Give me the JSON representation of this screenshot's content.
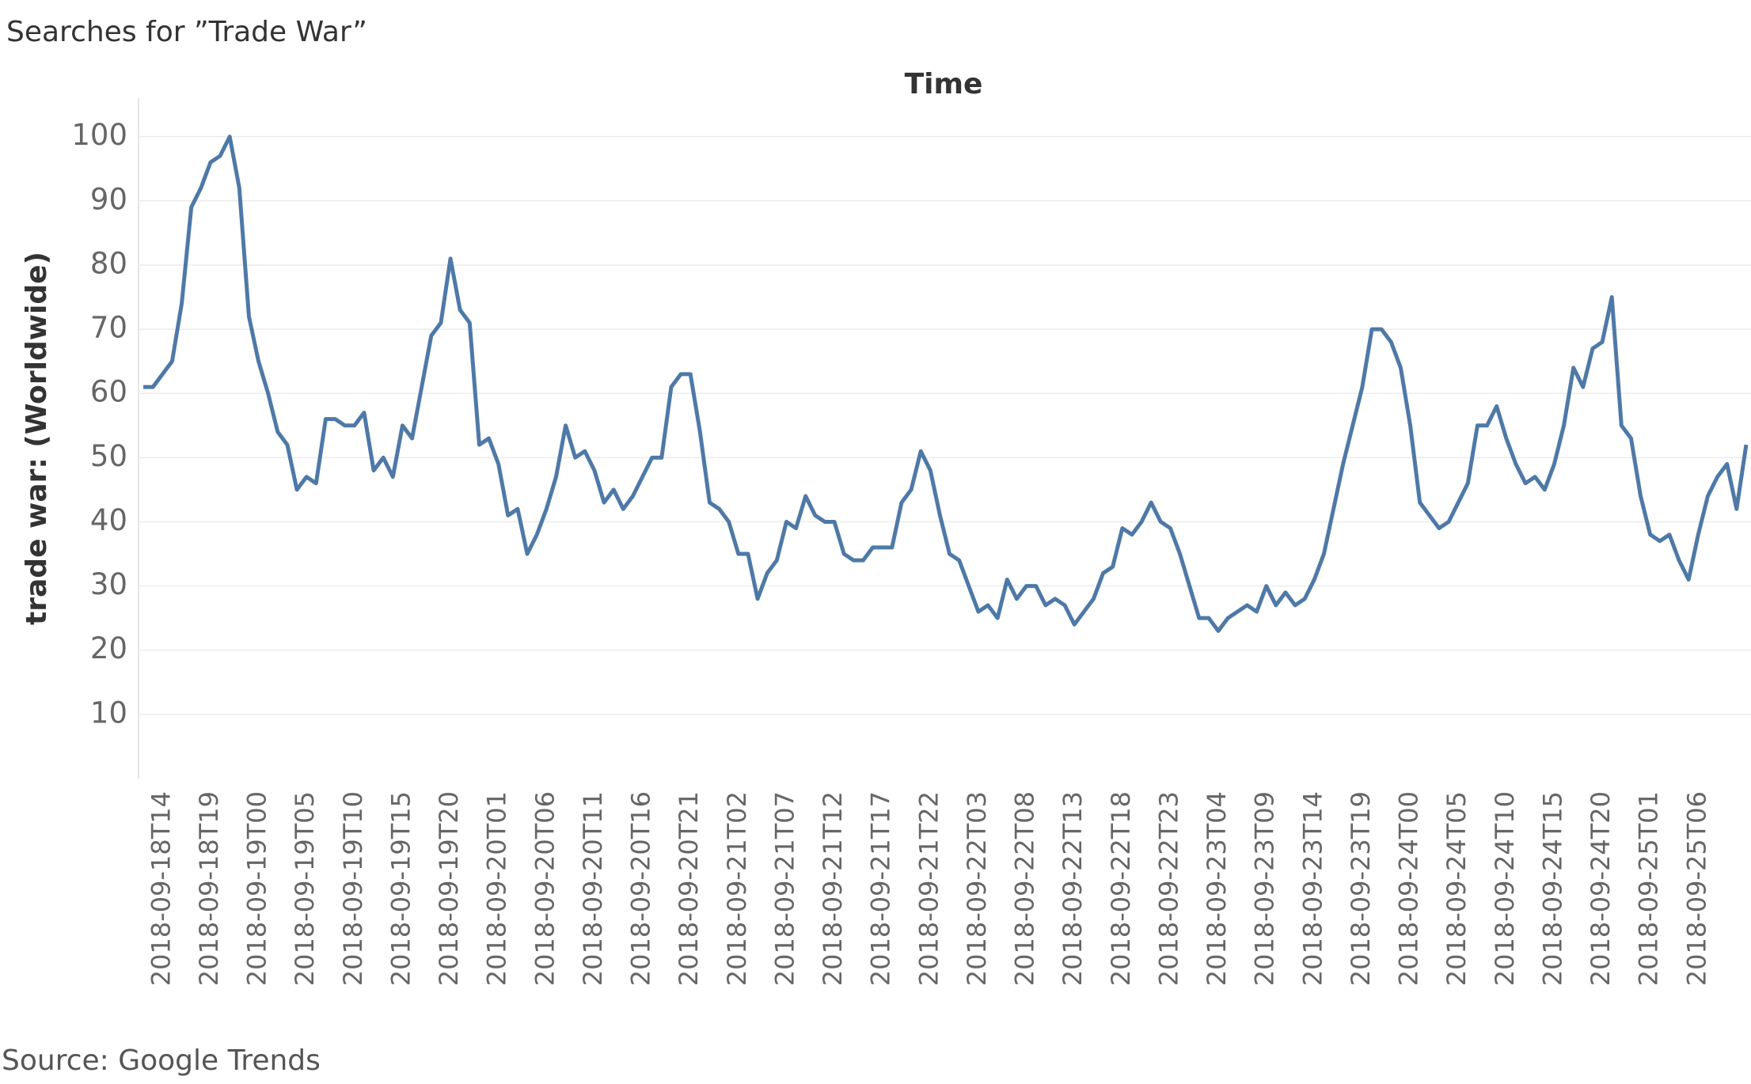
{
  "chart_data": {
    "type": "line",
    "title": "Searches for ”Trade War”",
    "x_label": "Time",
    "y_label": "trade war: (Worldwide)",
    "source": "Source: Google Trends",
    "categories": [
      null,
      null,
      "2018-09-18T14",
      null,
      null,
      null,
      null,
      "2018-09-18T19",
      null,
      null,
      null,
      null,
      "2018-09-19T00",
      null,
      null,
      null,
      null,
      "2018-09-19T05",
      null,
      null,
      null,
      null,
      "2018-09-19T10",
      null,
      null,
      null,
      null,
      "2018-09-19T15",
      null,
      null,
      null,
      null,
      "2018-09-19T20",
      null,
      null,
      null,
      null,
      "2018-09-20T01",
      null,
      null,
      null,
      null,
      "2018-09-20T06",
      null,
      null,
      null,
      null,
      "2018-09-20T11",
      null,
      null,
      null,
      null,
      "2018-09-20T16",
      null,
      null,
      null,
      null,
      "2018-09-20T21",
      null,
      null,
      null,
      null,
      "2018-09-21T02",
      null,
      null,
      null,
      null,
      "2018-09-21T07",
      null,
      null,
      null,
      null,
      "2018-09-21T12",
      null,
      null,
      null,
      null,
      "2018-09-21T17",
      null,
      null,
      null,
      null,
      "2018-09-21T22",
      null,
      null,
      null,
      null,
      "2018-09-22T03",
      null,
      null,
      null,
      null,
      "2018-09-22T08",
      null,
      null,
      null,
      null,
      "2018-09-22T13",
      null,
      null,
      null,
      null,
      "2018-09-22T18",
      null,
      null,
      null,
      null,
      "2018-09-22T23",
      null,
      null,
      null,
      null,
      "2018-09-23T04",
      null,
      null,
      null,
      null,
      "2018-09-23T09",
      null,
      null,
      null,
      null,
      "2018-09-23T14",
      null,
      null,
      null,
      null,
      "2018-09-23T19",
      null,
      null,
      null,
      null,
      "2018-09-24T00",
      null,
      null,
      null,
      null,
      "2018-09-24T05",
      null,
      null,
      null,
      null,
      "2018-09-24T10",
      null,
      null,
      null,
      null,
      "2018-09-24T15",
      null,
      null,
      null,
      null,
      "2018-09-24T20",
      null,
      null,
      null,
      null,
      "2018-09-25T01",
      null,
      null,
      null,
      null,
      "2018-09-25T06",
      null,
      null,
      null,
      null,
      null
    ],
    "values": [
      61,
      61,
      63,
      65,
      74,
      89,
      92,
      96,
      97,
      100,
      92,
      72,
      65,
      60,
      54,
      52,
      45,
      47,
      46,
      56,
      56,
      55,
      55,
      57,
      48,
      50,
      47,
      55,
      53,
      61,
      69,
      71,
      81,
      73,
      71,
      52,
      53,
      49,
      41,
      42,
      35,
      38,
      42,
      47,
      55,
      50,
      51,
      48,
      43,
      45,
      42,
      44,
      47,
      50,
      50,
      61,
      63,
      63,
      54,
      43,
      42,
      40,
      35,
      35,
      28,
      32,
      34,
      40,
      39,
      44,
      41,
      40,
      40,
      35,
      34,
      34,
      36,
      36,
      36,
      43,
      45,
      51,
      48,
      41,
      35,
      34,
      30,
      26,
      27,
      25,
      31,
      28,
      30,
      30,
      27,
      28,
      27,
      24,
      26,
      28,
      32,
      33,
      39,
      38,
      40,
      43,
      40,
      39,
      35,
      30,
      25,
      25,
      23,
      25,
      26,
      27,
      26,
      30,
      27,
      29,
      27,
      28,
      31,
      35,
      42,
      49,
      55,
      61,
      70,
      70,
      68,
      64,
      55,
      43,
      41,
      39,
      40,
      43,
      46,
      55,
      55,
      58,
      53,
      49,
      46,
      47,
      45,
      49,
      55,
      64,
      61,
      67,
      68,
      75,
      55,
      53,
      44,
      38,
      37,
      38,
      34,
      31,
      38,
      44,
      47,
      49,
      42,
      52
    ],
    "color": "#4e79a7",
    "ylim": [
      0,
      106
    ],
    "yticks": [
      10,
      20,
      30,
      40,
      50,
      60,
      70,
      80,
      90,
      100
    ],
    "grid": true
  }
}
